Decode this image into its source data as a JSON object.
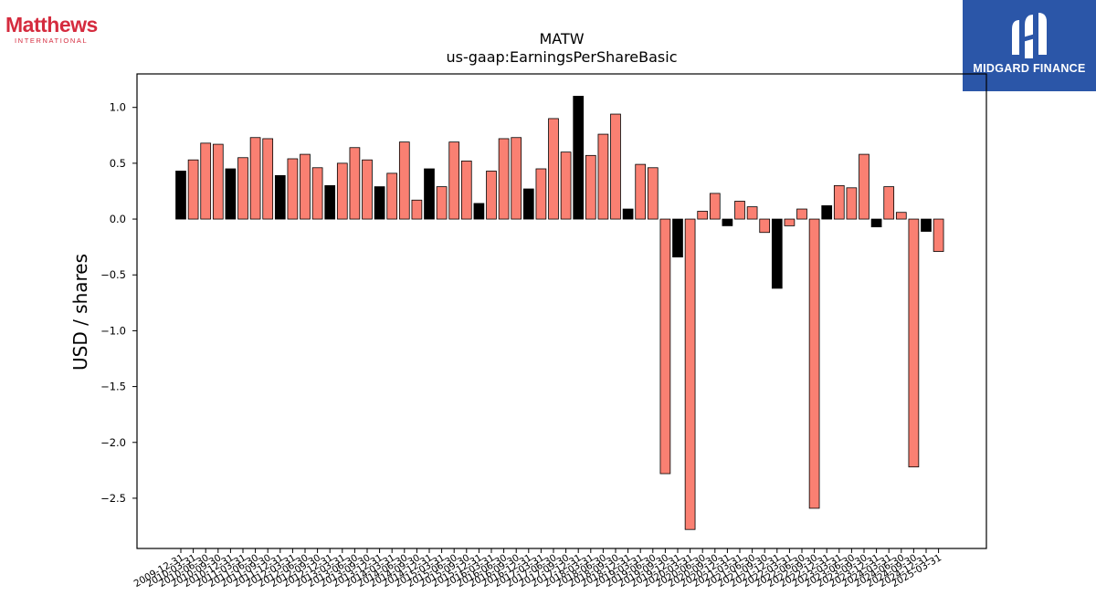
{
  "brand": {
    "name": "Matthews",
    "subtitle": "INTERNATIONAL"
  },
  "badge": {
    "name": "MIDGARD FINANCE",
    "logo_icon": "midgard-monogram-icon",
    "color": "#2b56a8"
  },
  "colors": {
    "annual": "#000000",
    "quarterly": "#fa8072",
    "brand": "#d52b3e"
  },
  "chart_data": {
    "type": "bar",
    "title": "MATW",
    "subtitle": "us-gaap:EarningsPerShareBasic",
    "xlabel": "",
    "ylabel": "USD / shares",
    "ylim": [
      -2.95,
      1.3
    ],
    "yticks": [
      1.0,
      0.5,
      0.0,
      -0.5,
      -1.0,
      -1.5,
      -2.0,
      -2.5
    ],
    "ytick_labels": [
      "1.0",
      "0.5",
      "0.0",
      "−0.5",
      "−1.0",
      "−1.5",
      "−2.0",
      "−2.5"
    ],
    "grid": false,
    "categories": [
      "2009-12-31",
      "2010-03-31",
      "2010-06-30",
      "2010-09-30",
      "2010-12-31",
      "2011-03-31",
      "2011-06-30",
      "2011-09-30",
      "2011-12-31",
      "2012-03-31",
      "2012-06-30",
      "2012-09-30",
      "2012-12-31",
      "2013-03-31",
      "2013-06-30",
      "2013-09-30",
      "2013-12-31",
      "2014-03-31",
      "2014-06-30",
      "2014-09-30",
      "2014-12-31",
      "2015-03-31",
      "2015-06-30",
      "2015-09-30",
      "2015-12-31",
      "2016-03-31",
      "2016-06-30",
      "2016-09-30",
      "2016-12-31",
      "2017-03-31",
      "2017-06-30",
      "2017-09-30",
      "2017-12-31",
      "2018-03-31",
      "2018-06-30",
      "2018-09-30",
      "2018-12-31",
      "2019-03-31",
      "2019-06-30",
      "2019-09-30",
      "2019-12-31",
      "2020-03-31",
      "2020-06-30",
      "2020-09-30",
      "2020-12-31",
      "2021-03-31",
      "2021-06-30",
      "2021-09-30",
      "2021-12-31",
      "2022-03-31",
      "2022-06-30",
      "2022-09-30",
      "2022-12-31",
      "2023-03-31",
      "2023-06-30",
      "2023-09-30",
      "2023-12-31",
      "2024-03-31",
      "2024-06-30",
      "2024-09-30",
      "2024-12-31",
      "2025-03-31"
    ],
    "values": [
      0.43,
      0.53,
      0.68,
      0.67,
      0.45,
      0.55,
      0.73,
      0.72,
      0.39,
      0.54,
      0.58,
      0.46,
      0.3,
      0.5,
      0.64,
      0.53,
      0.29,
      0.41,
      0.69,
      0.17,
      0.45,
      0.29,
      0.69,
      0.52,
      0.14,
      0.43,
      0.72,
      0.73,
      0.27,
      0.45,
      0.9,
      0.6,
      1.1,
      0.57,
      0.76,
      0.94,
      0.09,
      0.49,
      0.46,
      -2.28,
      -0.34,
      -2.78,
      0.07,
      0.23,
      -0.06,
      0.16,
      0.11,
      -0.12,
      -0.62,
      -0.06,
      0.09,
      -2.59,
      0.12,
      0.3,
      0.28,
      0.58,
      -0.07,
      0.29,
      0.06,
      -2.22,
      -0.11,
      -0.29
    ],
    "bar_kind": [
      "annual",
      "quarterly",
      "quarterly",
      "quarterly",
      "annual",
      "quarterly",
      "quarterly",
      "quarterly",
      "annual",
      "quarterly",
      "quarterly",
      "quarterly",
      "annual",
      "quarterly",
      "quarterly",
      "quarterly",
      "annual",
      "quarterly",
      "quarterly",
      "quarterly",
      "annual",
      "quarterly",
      "quarterly",
      "quarterly",
      "annual",
      "quarterly",
      "quarterly",
      "quarterly",
      "annual",
      "quarterly",
      "quarterly",
      "quarterly",
      "annual",
      "quarterly",
      "quarterly",
      "quarterly",
      "annual",
      "quarterly",
      "quarterly",
      "quarterly",
      "annual",
      "quarterly",
      "quarterly",
      "quarterly",
      "annual",
      "quarterly",
      "quarterly",
      "quarterly",
      "annual",
      "quarterly",
      "quarterly",
      "quarterly",
      "annual",
      "quarterly",
      "quarterly",
      "quarterly",
      "annual",
      "quarterly",
      "quarterly",
      "quarterly",
      "annual",
      "quarterly"
    ]
  }
}
